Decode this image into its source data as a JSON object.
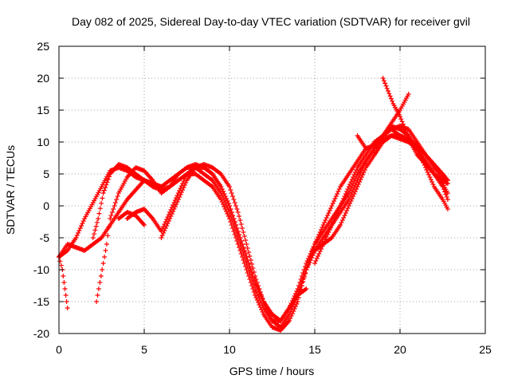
{
  "chart_data": {
    "type": "scatter",
    "title": "Day 082 of 2025, Sidereal Day-to-day VTEC variation (SDTVAR) for receiver gvil",
    "xlabel": "GPS time / hours",
    "ylabel": "SDTVAR / TECUs",
    "xlim": [
      0,
      25
    ],
    "ylim": [
      -20,
      25
    ],
    "xticks": [
      "0",
      "5",
      "10",
      "15",
      "20",
      "25"
    ],
    "yticks": [
      "-20",
      "-15",
      "-10",
      "-5",
      "0",
      "5",
      "10",
      "15",
      "20",
      "25"
    ],
    "grid": true,
    "marker": "+",
    "color": "#ff0000",
    "series": [
      {
        "x": [
          0.0,
          0.2,
          0.3,
          0.4,
          0.5
        ],
        "y": [
          -8,
          -10,
          -12,
          -14,
          -16
        ]
      },
      {
        "x": [
          0.0,
          0.5,
          1.0,
          1.5,
          2.0,
          2.5,
          3.0,
          3.5,
          4.0,
          4.5,
          5.0,
          5.5,
          6.0
        ],
        "y": [
          -8,
          -6,
          -6.5,
          -7,
          -6,
          -5,
          -3,
          -1,
          1,
          2.5,
          4,
          3.5,
          3
        ]
      },
      {
        "x": [
          0.0,
          0.5,
          1.0,
          1.5,
          2.0,
          2.5,
          3.0,
          3.5,
          4.0,
          4.5,
          5.0,
          5.5,
          6.0,
          6.5,
          7.0,
          7.5,
          8.0,
          8.5,
          9.0,
          9.5,
          10.0,
          10.5,
          11.0,
          11.5,
          12.0,
          12.5,
          13.0,
          13.5,
          14.0,
          14.5,
          15.0,
          15.5,
          16.0,
          16.5,
          17.0,
          17.5,
          18.0,
          18.5,
          19.0,
          19.5,
          20.0,
          20.5,
          21.0,
          21.5,
          22.0,
          22.5,
          22.8
        ],
        "y": [
          -8,
          -7,
          -5,
          -2,
          0.5,
          3,
          5.5,
          6,
          5.5,
          4.5,
          4,
          3,
          2.5,
          3,
          4,
          5,
          5,
          4,
          3,
          1,
          -2,
          -6,
          -10,
          -14,
          -17,
          -19,
          -19.5,
          -18,
          -15,
          -10,
          -7,
          -6,
          -5,
          -3,
          0,
          3,
          6,
          8,
          10,
          11,
          10.5,
          10,
          9,
          6,
          3,
          1,
          -0.5
        ]
      },
      {
        "x": [
          2.0,
          2.3,
          2.6,
          3.0,
          3.5,
          4.0,
          4.5,
          5.0,
          5.5,
          6.0,
          6.5,
          7.0,
          7.5,
          8.0,
          8.5,
          9.0,
          9.5,
          10.0,
          10.5,
          11.0,
          11.5,
          12.0,
          12.5,
          13.0,
          13.5,
          14.0,
          14.5,
          15.0,
          15.5,
          16.0,
          16.5,
          17.0,
          17.5,
          18.0,
          18.5,
          19.0,
          19.5,
          20.0,
          20.5,
          21.0,
          21.5,
          22.0,
          22.5,
          22.8
        ],
        "y": [
          -5,
          -2,
          2,
          5,
          6.5,
          6,
          5,
          4,
          3.5,
          3,
          4,
          5,
          6,
          6.5,
          6,
          5,
          3,
          0,
          -4,
          -8,
          -12,
          -15,
          -17,
          -18,
          -16,
          -13,
          -9,
          -6,
          -4,
          -2,
          0,
          2,
          5,
          7,
          9,
          11,
          12.5,
          12,
          11,
          9,
          7,
          5,
          3,
          1
        ]
      },
      {
        "x": [
          2.2,
          2.4,
          2.6,
          2.8,
          3.0,
          3.5,
          4.0,
          4.5,
          5.0,
          5.5,
          6.0,
          6.5,
          7.0,
          7.5,
          8.0,
          8.5,
          9.0,
          9.5,
          10.0,
          10.5,
          11.0,
          11.5,
          12.0,
          12.5,
          13.0,
          13.5,
          14.0,
          14.5,
          15.0,
          15.5,
          16.0,
          16.5,
          17.0,
          17.5,
          18.0,
          18.5,
          19.0,
          19.5,
          20.0,
          20.5,
          21.0,
          21.5,
          22.0,
          22.5,
          22.8
        ],
        "y": [
          -15,
          -12,
          -9,
          -6,
          -2,
          2,
          4.5,
          6,
          5.5,
          4,
          2,
          3,
          5,
          6,
          6,
          5,
          4,
          2,
          -1,
          -5,
          -9,
          -13,
          -16,
          -18,
          -18,
          -16,
          -14,
          -10,
          -7,
          -5,
          -3,
          -1,
          1,
          4,
          7,
          9,
          11,
          12,
          11,
          10,
          9,
          7,
          5,
          4,
          3.5
        ]
      },
      {
        "x": [
          3.5,
          4.0,
          4.5,
          5.0
        ],
        "y": [
          -2,
          -1,
          -1.5,
          -3
        ]
      },
      {
        "x": [
          4.0,
          4.5,
          5.0,
          5.5,
          6.0,
          6.5,
          7.0,
          7.5,
          8.0,
          8.5,
          9.0,
          9.5,
          10.0,
          10.5,
          11.0,
          11.5,
          12.0,
          12.5,
          13.0,
          13.5,
          14.0,
          14.5
        ],
        "y": [
          -2,
          -1,
          -0.5,
          -2,
          -4,
          -1,
          2,
          5,
          6,
          6,
          5,
          3,
          0,
          -4,
          -8,
          -12,
          -15,
          -17,
          -18,
          -16,
          -14,
          -13
        ]
      },
      {
        "x": [
          6.0,
          6.5,
          7.0,
          7.5,
          8.0,
          8.5,
          9.0,
          9.5,
          10.0,
          10.5,
          11.0,
          11.5,
          12.0,
          12.5,
          13.0,
          13.5,
          14.0,
          14.5,
          15.0,
          15.5,
          16.0,
          16.5,
          17.0,
          17.5,
          18.0
        ],
        "y": [
          -5,
          -2,
          1,
          4,
          6,
          6.5,
          6,
          5,
          3,
          -1,
          -6,
          -11,
          -15,
          -18,
          -19,
          -17,
          -14,
          -10,
          -6,
          -3,
          0,
          3,
          5,
          7,
          9
        ]
      },
      {
        "x": [
          15.0,
          15.5,
          16.0,
          16.5,
          17.0,
          17.5,
          18.0,
          18.5,
          19.0,
          19.5,
          20.0,
          20.5,
          21.0,
          21.5,
          22.0,
          22.5,
          22.8
        ],
        "y": [
          -9,
          -6,
          -3,
          0,
          3,
          6,
          8,
          10,
          11,
          12,
          12.5,
          12,
          10,
          8,
          6,
          4.5,
          4
        ]
      },
      {
        "x": [
          17.5,
          18.0,
          18.5,
          19.0,
          19.5,
          20.0,
          20.5,
          21.0,
          21.5,
          22.0,
          22.5,
          22.8
        ],
        "y": [
          11,
          9,
          9.5,
          10.5,
          11,
          11,
          10.5,
          9.5,
          8,
          6.5,
          5,
          4
        ]
      },
      {
        "x": [
          19.0,
          19.3,
          19.6,
          20.0,
          20.3,
          20.6,
          21.0,
          21.5,
          22.0,
          22.5,
          22.8
        ],
        "y": [
          20,
          18,
          16,
          14,
          12,
          10,
          8,
          6.5,
          5,
          3.5,
          2
        ]
      },
      {
        "x": [
          18.5,
          19.0,
          19.5,
          20.0,
          20.5
        ],
        "y": [
          8,
          11,
          13,
          15,
          17.5
        ]
      }
    ]
  }
}
